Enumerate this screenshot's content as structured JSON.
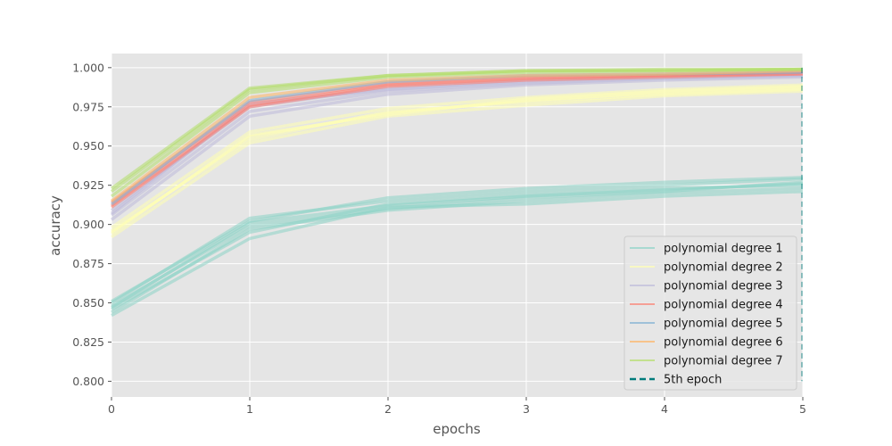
{
  "chart_data": {
    "type": "line",
    "title": "",
    "xlabel": "epochs",
    "ylabel": "accuracy",
    "xlim": [
      0,
      5
    ],
    "ylim": [
      0.79,
      1.009
    ],
    "x": [
      0,
      1,
      2,
      3,
      4,
      5
    ],
    "x_ticks": [
      0,
      1,
      2,
      3,
      4,
      5
    ],
    "x_tick_labels": [
      "0",
      "1",
      "2",
      "3",
      "4",
      "5"
    ],
    "y_ticks": [
      0.8,
      0.825,
      0.85,
      0.875,
      0.9,
      0.925,
      0.95,
      0.975,
      1.0
    ],
    "y_tick_labels": [
      "0.800",
      "0.825",
      "0.850",
      "0.875",
      "0.900",
      "0.925",
      "0.950",
      "0.975",
      "1.000"
    ],
    "grid": true,
    "style": "ggplot",
    "legend_position": "lower-right",
    "series": [
      {
        "name": "polynomial degree 1",
        "color": "#8dd3c7",
        "runs": [
          [
            0.847,
            0.901,
            0.912,
            0.918,
            0.922,
            0.926
          ],
          [
            0.85,
            0.904,
            0.915,
            0.921,
            0.925,
            0.929
          ],
          [
            0.844,
            0.897,
            0.909,
            0.915,
            0.92,
            0.923
          ],
          [
            0.842,
            0.891,
            0.911,
            0.913,
            0.918,
            0.921
          ],
          [
            0.851,
            0.902,
            0.917,
            0.923,
            0.927,
            0.93
          ],
          [
            0.846,
            0.895,
            0.913,
            0.919,
            0.923,
            0.925
          ],
          [
            0.848,
            0.899,
            0.91,
            0.917,
            0.921,
            0.927
          ]
        ]
      },
      {
        "name": "polynomial degree 2",
        "color": "#ffffb3",
        "runs": [
          [
            0.895,
            0.956,
            0.971,
            0.979,
            0.984,
            0.987
          ],
          [
            0.898,
            0.959,
            0.974,
            0.981,
            0.986,
            0.989
          ],
          [
            0.892,
            0.952,
            0.969,
            0.976,
            0.982,
            0.985
          ],
          [
            0.896,
            0.954,
            0.972,
            0.978,
            0.983,
            0.986
          ],
          [
            0.894,
            0.957,
            0.97,
            0.98,
            0.985,
            0.988
          ]
        ]
      },
      {
        "name": "polynomial degree 3",
        "color": "#bebada",
        "runs": [
          [
            0.906,
            0.972,
            0.985,
            0.99,
            0.993,
            0.995
          ],
          [
            0.909,
            0.975,
            0.987,
            0.992,
            0.994,
            0.996
          ],
          [
            0.903,
            0.969,
            0.983,
            0.989,
            0.992,
            0.994
          ],
          [
            0.907,
            0.977,
            0.986,
            0.991,
            0.994,
            0.995
          ]
        ]
      },
      {
        "name": "polynomial degree 4",
        "color": "#fb8072",
        "runs": [
          [
            0.912,
            0.976,
            0.989,
            0.993,
            0.995,
            0.996
          ],
          [
            0.914,
            0.978,
            0.99,
            0.994,
            0.995,
            0.997
          ],
          [
            0.911,
            0.975,
            0.988,
            0.992,
            0.994,
            0.996
          ]
        ]
      },
      {
        "name": "polynomial degree 5",
        "color": "#80b1d3",
        "runs": [
          [
            0.913,
            0.979,
            0.991,
            0.995,
            0.996,
            0.997
          ]
        ]
      },
      {
        "name": "polynomial degree 6",
        "color": "#fdb462",
        "runs": [
          [
            0.915,
            0.981,
            0.992,
            0.995,
            0.996,
            0.998
          ]
        ]
      },
      {
        "name": "polynomial degree 7",
        "color": "#b3de69",
        "runs": [
          [
            0.918,
            0.984,
            0.994,
            0.997,
            0.998,
            0.999
          ],
          [
            0.921,
            0.986,
            0.995,
            0.998,
            0.998,
            0.999
          ],
          [
            0.923,
            0.987,
            0.995,
            0.998,
            0.999,
            0.999
          ]
        ]
      }
    ],
    "reference_line": {
      "name": "5th epoch",
      "x": 5,
      "color": "#007b7b",
      "style": "dashed"
    }
  }
}
